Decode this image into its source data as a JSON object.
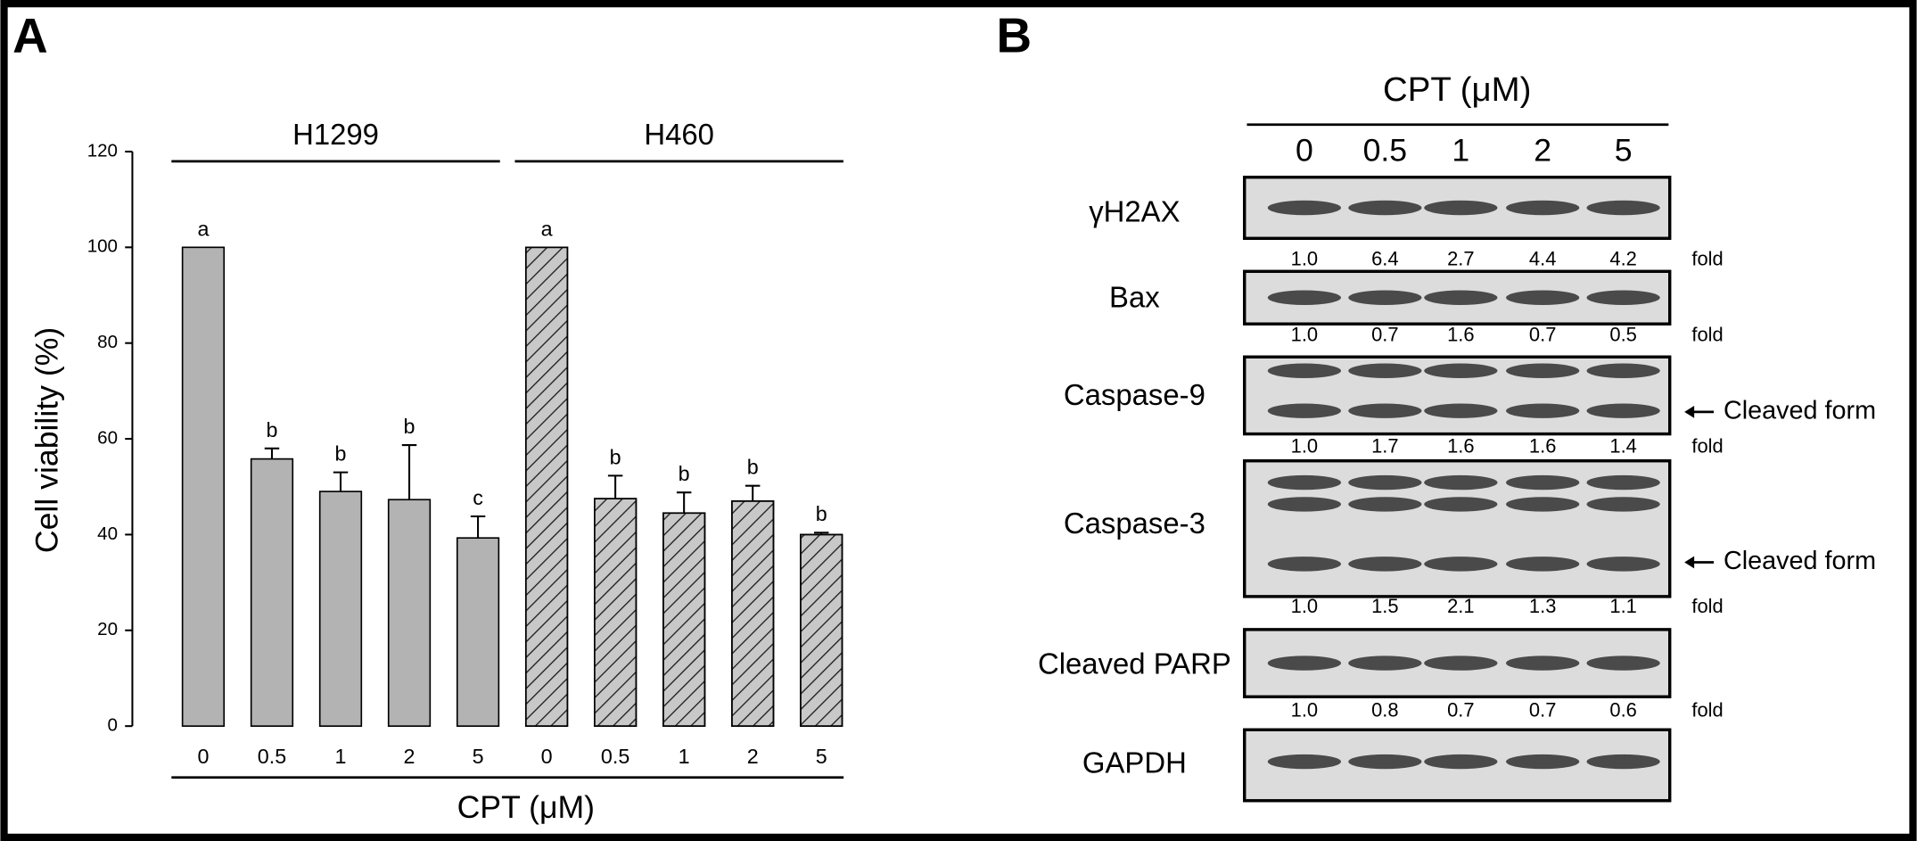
{
  "panel_labels": [
    "A",
    "B"
  ],
  "chart_data": {
    "type": "bar",
    "ylabel": "Cell viability (%)",
    "xlabel": "CPT (μM)",
    "categories": [
      "0",
      "0.5",
      "1",
      "2",
      "5",
      "0",
      "0.5",
      "1",
      "2",
      "5"
    ],
    "groups": [
      {
        "name": "H1299",
        "span": [
          0,
          4
        ]
      },
      {
        "name": "H460",
        "span": [
          5,
          9
        ]
      }
    ],
    "series": [
      {
        "name": "H1299",
        "color": "#b3b3b3",
        "hatch": false,
        "values": [
          100,
          55.8,
          49,
          47.3,
          39.3,
          null,
          null,
          null,
          null,
          null
        ],
        "errors": [
          0,
          2.2,
          4,
          11.4,
          4.5,
          null,
          null,
          null,
          null,
          null
        ],
        "letters": [
          "a",
          "b",
          "b",
          "b",
          "c",
          null,
          null,
          null,
          null,
          null
        ]
      },
      {
        "name": "H460",
        "color": "#c8c8c8",
        "hatch": true,
        "values": [
          null,
          null,
          null,
          null,
          null,
          100,
          47.5,
          44.5,
          47,
          40
        ],
        "errors": [
          null,
          null,
          null,
          null,
          null,
          0,
          4.8,
          4.3,
          3.2,
          0.4
        ],
        "letters": [
          null,
          null,
          null,
          null,
          null,
          "a",
          "b",
          "b",
          "b",
          "b"
        ]
      }
    ],
    "ylim": [
      0,
      120
    ],
    "yticks": [
      0,
      20,
      40,
      60,
      80,
      100,
      120
    ]
  },
  "blot": {
    "title": "CPT (μM)",
    "lanes": [
      "0",
      "0.5",
      "1",
      "2",
      "5"
    ],
    "fold_label": "fold",
    "rows": [
      {
        "label": "γH2AX",
        "folds": [
          "1.0",
          "6.4",
          "2.7",
          "4.4",
          "4.2"
        ]
      },
      {
        "label": "Bax",
        "folds": [
          "1.0",
          "0.7",
          "1.6",
          "0.7",
          "0.5"
        ]
      },
      {
        "label": "Caspase-9",
        "folds": [
          "1.0",
          "1.7",
          "1.6",
          "1.6",
          "1.4"
        ],
        "annotation": "Cleaved form"
      },
      {
        "label": "Caspase-3",
        "folds": [
          "1.0",
          "1.5",
          "2.1",
          "1.3",
          "1.1"
        ],
        "annotation": "Cleaved form"
      },
      {
        "label": "Cleaved PARP",
        "folds": [
          "1.0",
          "0.8",
          "0.7",
          "0.7",
          "0.6"
        ]
      },
      {
        "label": "GAPDH"
      }
    ]
  }
}
